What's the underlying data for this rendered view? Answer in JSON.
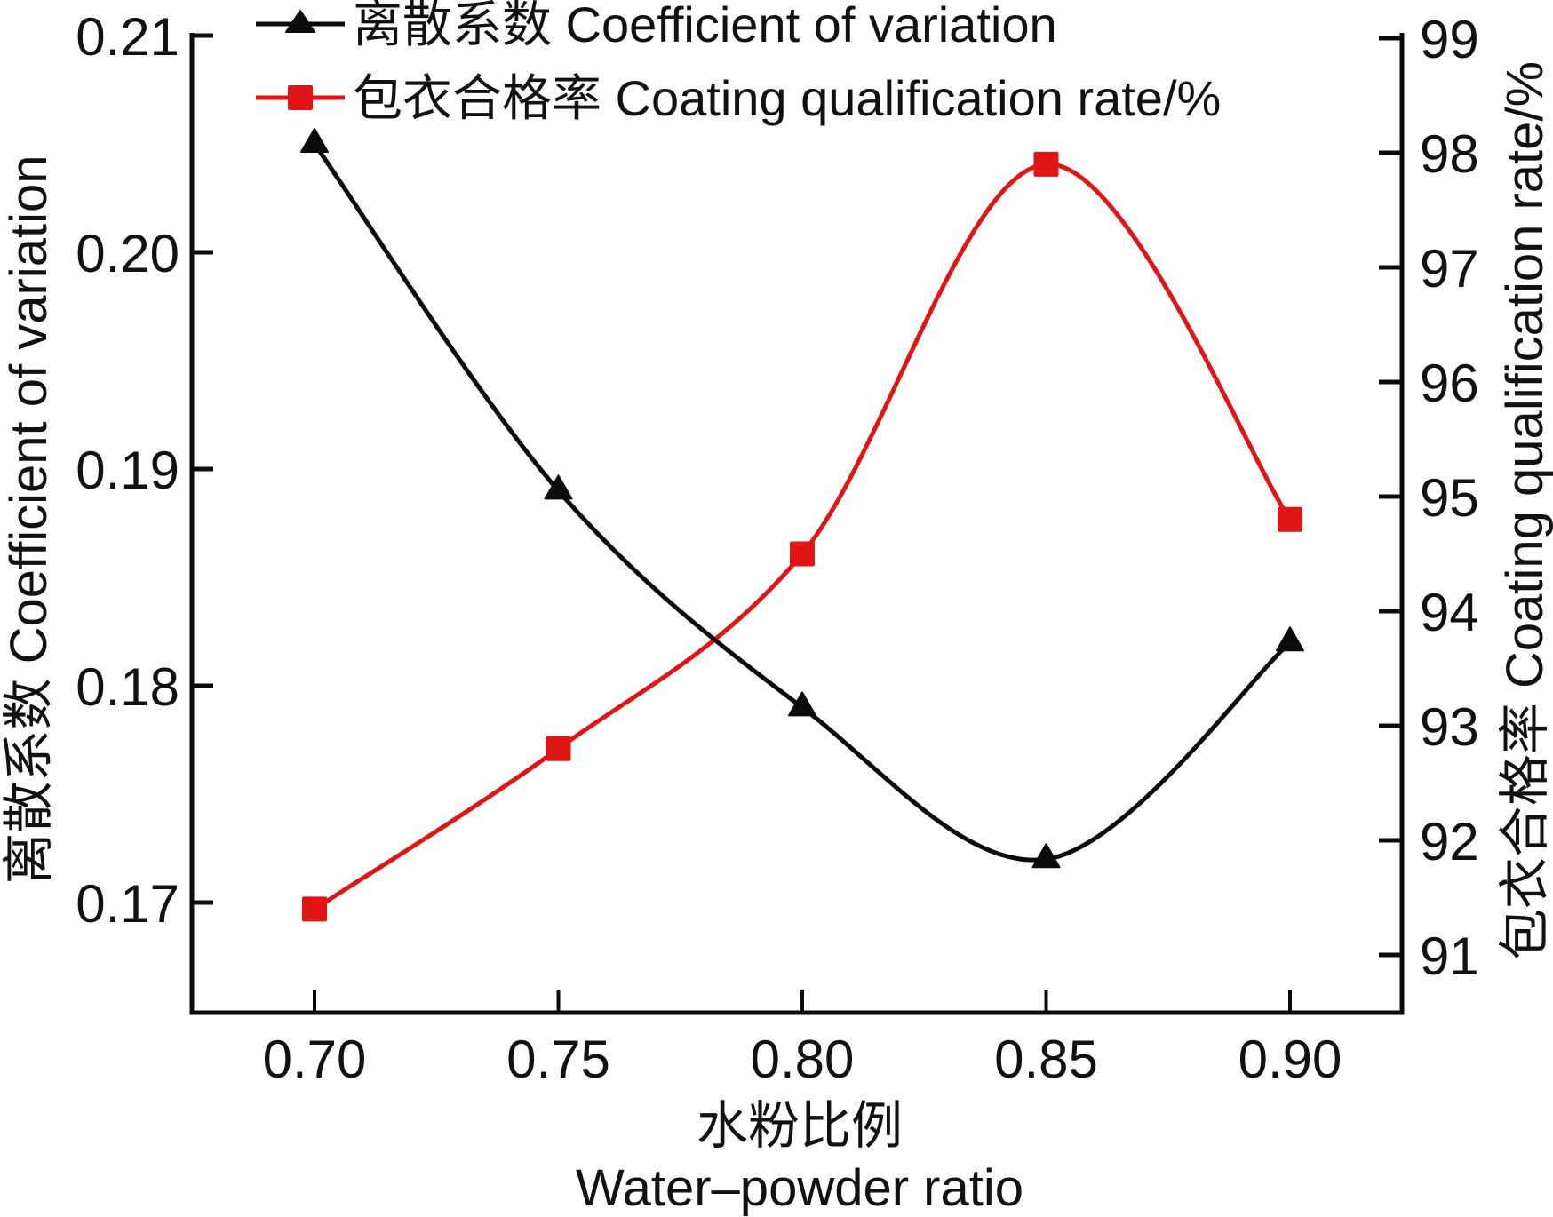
{
  "chart_data": {
    "type": "line",
    "x": [
      0.7,
      0.75,
      0.8,
      0.85,
      0.9
    ],
    "x_tick_labels": [
      "0.70",
      "0.75",
      "0.80",
      "0.85",
      "0.90"
    ],
    "xlabel_cn": "水粉比例",
    "xlabel_en": "Water–powder ratio",
    "xlim": [
      0.675,
      0.925
    ],
    "y_left": {
      "label": "离散系数 Coefficient of variation",
      "ticks": [
        0.17,
        0.18,
        0.19,
        0.2,
        0.21
      ],
      "tick_labels": [
        "0.17",
        "0.18",
        "0.19",
        "0.20",
        "0.21"
      ],
      "ylim": [
        0.1655,
        0.2101
      ]
    },
    "y_right": {
      "label": "包衣合格率 Coating qualification rate/%",
      "ticks": [
        91,
        92,
        93,
        94,
        95,
        96,
        97,
        98,
        99
      ],
      "tick_labels": [
        "91",
        "92",
        "93",
        "94",
        "95",
        "96",
        "97",
        "98",
        "99"
      ],
      "ylim": [
        90.5,
        99.04
      ]
    },
    "series": [
      {
        "name": "离散系数 Coefficient of variation",
        "axis": "left",
        "marker": "triangle",
        "color": "#0d0a0b",
        "values": [
          0.205,
          0.189,
          0.179,
          0.172,
          0.182
        ]
      },
      {
        "name": "包衣合格率 Coating qualification rate/%",
        "axis": "right",
        "marker": "square",
        "color": "#e01616",
        "values": [
          91.4,
          92.8,
          94.5,
          97.9,
          94.8
        ]
      }
    ],
    "legend_position": "top-center",
    "grid": false
  }
}
